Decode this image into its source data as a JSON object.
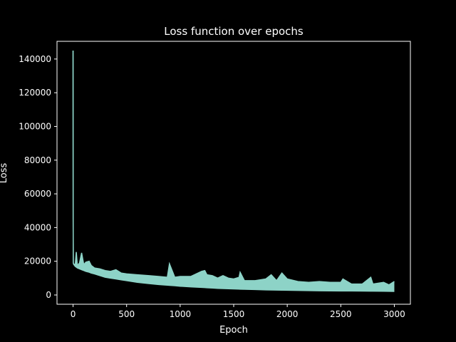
{
  "colors": {
    "background": "#000000",
    "axes": "#ffffff",
    "text": "#ffffff",
    "series": "#8dd3c7"
  },
  "chart_data": {
    "type": "line",
    "title": "Loss function over epochs",
    "xlabel": "Epoch",
    "ylabel": "Loss",
    "xlim": [
      -150,
      3150
    ],
    "ylim": [
      -5500,
      150500
    ],
    "grid": false,
    "legend": "none",
    "x_ticks": [
      {
        "value": 0,
        "label": "0"
      },
      {
        "value": 500,
        "label": "500"
      },
      {
        "value": 1000,
        "label": "1000"
      },
      {
        "value": 1500,
        "label": "1500"
      },
      {
        "value": 2000,
        "label": "2000"
      },
      {
        "value": 2500,
        "label": "2500"
      },
      {
        "value": 3000,
        "label": "3000"
      }
    ],
    "y_ticks": [
      {
        "value": 0,
        "label": "0"
      },
      {
        "value": 20000,
        "label": "20000"
      },
      {
        "value": 40000,
        "label": "40000"
      },
      {
        "value": 60000,
        "label": "60000"
      },
      {
        "value": 80000,
        "label": "80000"
      },
      {
        "value": 100000,
        "label": "100000"
      },
      {
        "value": 120000,
        "label": "120000"
      },
      {
        "value": 140000,
        "label": "140000"
      }
    ],
    "series": [
      {
        "color": "#8dd3c7",
        "x": [
          0,
          1,
          2,
          5,
          20,
          30,
          40,
          60,
          80,
          100,
          120,
          150,
          170,
          200,
          250,
          300,
          350,
          400,
          450,
          500,
          600,
          700,
          800,
          880,
          900,
          950,
          1000,
          1100,
          1200,
          1230,
          1250,
          1300,
          1350,
          1400,
          1450,
          1500,
          1550,
          1560,
          1600,
          1700,
          1800,
          1850,
          1900,
          1950,
          2000,
          2100,
          2200,
          2300,
          2400,
          2500,
          2520,
          2600,
          2700,
          2780,
          2800,
          2900,
          2950,
          3000
        ],
        "y_upper": [
          145000,
          45000,
          19000,
          18500,
          17800,
          25500,
          17500,
          19000,
          25000,
          18000,
          19500,
          20000,
          17500,
          16000,
          15500,
          14500,
          14000,
          15000,
          13000,
          12500,
          12000,
          11500,
          11000,
          10500,
          18500,
          10500,
          11000,
          11000,
          14000,
          14500,
          12000,
          11500,
          10000,
          11500,
          10000,
          9500,
          10500,
          13500,
          8500,
          8500,
          9500,
          12000,
          8500,
          13000,
          9500,
          8000,
          7500,
          8000,
          7500,
          7500,
          9500,
          6500,
          6500,
          10500,
          6500,
          7500,
          6000,
          8000
        ],
        "y_lower": [
          145000,
          45000,
          19000,
          18200,
          17000,
          16500,
          16000,
          15500,
          15000,
          14500,
          14000,
          13500,
          13000,
          12500,
          11500,
          10500,
          10000,
          9500,
          9000,
          8500,
          7500,
          6800,
          6200,
          5800,
          5700,
          5500,
          5200,
          4800,
          4500,
          4400,
          4300,
          4100,
          3900,
          3800,
          3700,
          3600,
          3500,
          3450,
          3400,
          3200,
          3000,
          2950,
          2900,
          2850,
          2800,
          2700,
          2600,
          2500,
          2450,
          2400,
          2380,
          2350,
          2300,
          2250,
          2250,
          2200,
          2150,
          2100
        ]
      }
    ]
  }
}
